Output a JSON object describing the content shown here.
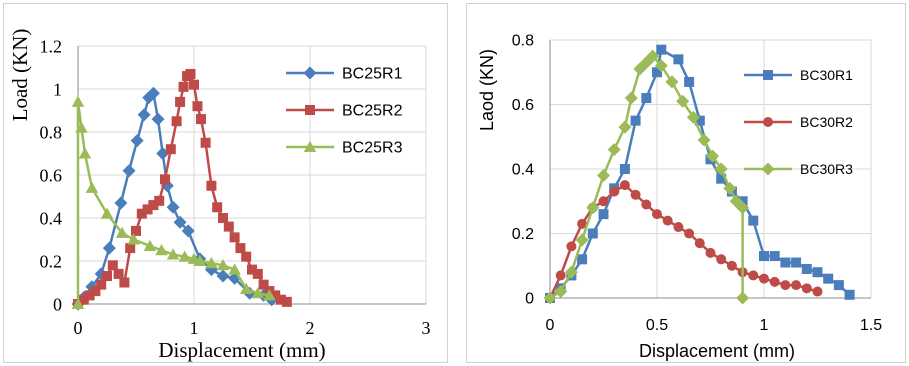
{
  "chart_data": [
    {
      "type": "line",
      "title": "",
      "xlabel": "Displacement (mm)",
      "ylabel": "Load (KN)",
      "xlim": [
        0,
        3
      ],
      "ylim": [
        0,
        1.2
      ],
      "xticks": [
        "0",
        "1",
        "2",
        "3"
      ],
      "yticks": [
        "0",
        "0.2",
        "0.4",
        "0.6",
        "0.8",
        "1",
        "1.2"
      ],
      "grid": true,
      "legend_position": "right",
      "series": [
        {
          "name": "BC25R1",
          "color": "#4a7ebb",
          "marker": "diamond",
          "x": [
            0.0,
            0.05,
            0.12,
            0.2,
            0.27,
            0.37,
            0.44,
            0.51,
            0.57,
            0.61,
            0.65,
            0.69,
            0.73,
            0.77,
            0.82,
            0.88,
            0.95,
            1.05,
            1.15,
            1.25,
            1.35,
            1.48,
            1.6,
            1.67
          ],
          "y": [
            0.0,
            0.03,
            0.08,
            0.14,
            0.26,
            0.47,
            0.62,
            0.76,
            0.88,
            0.96,
            0.98,
            0.86,
            0.7,
            0.55,
            0.45,
            0.38,
            0.34,
            0.21,
            0.16,
            0.13,
            0.12,
            0.05,
            0.04,
            0.02
          ]
        },
        {
          "name": "BC25R2",
          "color": "#be4b48",
          "marker": "square",
          "x": [
            0.0,
            0.05,
            0.1,
            0.15,
            0.2,
            0.25,
            0.3,
            0.35,
            0.4,
            0.45,
            0.5,
            0.55,
            0.6,
            0.65,
            0.7,
            0.75,
            0.8,
            0.85,
            0.88,
            0.91,
            0.94,
            0.97,
            1.0,
            1.03,
            1.06,
            1.1,
            1.15,
            1.2,
            1.25,
            1.3,
            1.35,
            1.4,
            1.45,
            1.5,
            1.55,
            1.6,
            1.65,
            1.7,
            1.75,
            1.8
          ],
          "y": [
            0.0,
            0.02,
            0.04,
            0.06,
            0.09,
            0.13,
            0.18,
            0.14,
            0.1,
            0.26,
            0.34,
            0.42,
            0.44,
            0.46,
            0.48,
            0.58,
            0.72,
            0.85,
            0.94,
            1.01,
            1.06,
            1.07,
            1.02,
            0.92,
            0.86,
            0.75,
            0.55,
            0.45,
            0.4,
            0.36,
            0.31,
            0.26,
            0.22,
            0.16,
            0.14,
            0.09,
            0.06,
            0.04,
            0.02,
            0.01
          ]
        },
        {
          "name": "BC25R3",
          "color": "#9bbb59",
          "marker": "triangle",
          "x": [
            0.0,
            0.0,
            0.03,
            0.06,
            0.12,
            0.25,
            0.38,
            0.48,
            0.62,
            0.72,
            0.82,
            0.92,
            1.0,
            1.05,
            1.15,
            1.25,
            1.35,
            1.45,
            1.55,
            1.65
          ],
          "y": [
            0.0,
            0.94,
            0.82,
            0.7,
            0.54,
            0.42,
            0.33,
            0.3,
            0.27,
            0.25,
            0.23,
            0.22,
            0.21,
            0.2,
            0.19,
            0.18,
            0.16,
            0.07,
            0.05,
            0.04
          ]
        }
      ]
    },
    {
      "type": "line",
      "title": "",
      "xlabel": "Displacement (mm)",
      "ylabel": "Laod (KN)",
      "xlim": [
        0,
        1.5
      ],
      "ylim": [
        0,
        0.8
      ],
      "xticks": [
        "0",
        "0.5",
        "1",
        "1.5"
      ],
      "yticks": [
        "0",
        "0.2",
        "0.4",
        "0.6",
        "0.8"
      ],
      "grid": true,
      "legend_position": "right",
      "series": [
        {
          "name": "BC30R1",
          "color": "#4a7ebb",
          "marker": "square",
          "x": [
            0.0,
            0.05,
            0.1,
            0.15,
            0.2,
            0.25,
            0.3,
            0.35,
            0.4,
            0.45,
            0.5,
            0.52,
            0.6,
            0.65,
            0.7,
            0.75,
            0.8,
            0.85,
            0.9,
            0.95,
            1.0,
            1.05,
            1.1,
            1.15,
            1.2,
            1.25,
            1.3,
            1.35,
            1.4
          ],
          "y": [
            0.0,
            0.03,
            0.07,
            0.12,
            0.2,
            0.26,
            0.34,
            0.4,
            0.55,
            0.62,
            0.7,
            0.77,
            0.74,
            0.67,
            0.55,
            0.43,
            0.37,
            0.33,
            0.3,
            0.24,
            0.13,
            0.13,
            0.11,
            0.11,
            0.09,
            0.08,
            0.06,
            0.04,
            0.01
          ]
        },
        {
          "name": "BC30R2",
          "color": "#be4b48",
          "marker": "circle",
          "x": [
            0.0,
            0.05,
            0.1,
            0.15,
            0.2,
            0.25,
            0.3,
            0.35,
            0.4,
            0.45,
            0.5,
            0.55,
            0.6,
            0.65,
            0.7,
            0.75,
            0.8,
            0.85,
            0.9,
            0.95,
            1.0,
            1.05,
            1.1,
            1.15,
            1.2,
            1.25
          ],
          "y": [
            0.0,
            0.07,
            0.16,
            0.23,
            0.28,
            0.3,
            0.33,
            0.35,
            0.32,
            0.29,
            0.26,
            0.24,
            0.22,
            0.2,
            0.17,
            0.14,
            0.12,
            0.1,
            0.08,
            0.07,
            0.06,
            0.05,
            0.04,
            0.04,
            0.03,
            0.02
          ]
        },
        {
          "name": "BC30R3",
          "color": "#9bbb59",
          "marker": "diamond",
          "x": [
            0.0,
            0.05,
            0.1,
            0.15,
            0.2,
            0.25,
            0.3,
            0.35,
            0.38,
            0.42,
            0.45,
            0.48,
            0.52,
            0.57,
            0.62,
            0.67,
            0.72,
            0.76,
            0.8,
            0.84,
            0.87,
            0.9,
            0.9
          ],
          "y": [
            0.0,
            0.02,
            0.08,
            0.18,
            0.28,
            0.38,
            0.46,
            0.53,
            0.62,
            0.71,
            0.73,
            0.75,
            0.72,
            0.67,
            0.61,
            0.56,
            0.49,
            0.44,
            0.4,
            0.34,
            0.3,
            0.28,
            0.0
          ]
        }
      ]
    }
  ]
}
